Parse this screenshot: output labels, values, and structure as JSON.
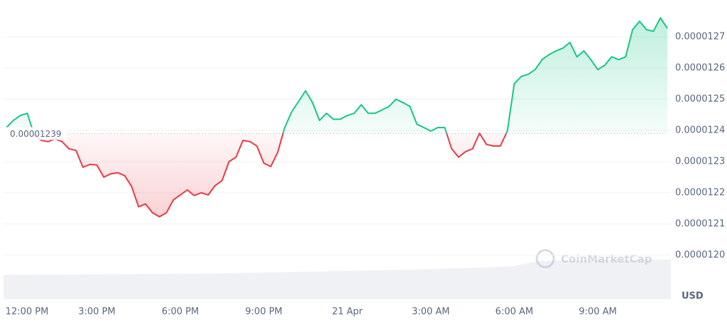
{
  "chart_data": {
    "type": "line",
    "categories": [
      null,
      "12:00 PM",
      null,
      null,
      null,
      null,
      null,
      null,
      null,
      null,
      null,
      null,
      null,
      "3:00 PM",
      null,
      null,
      null,
      null,
      null,
      null,
      null,
      null,
      null,
      null,
      null,
      "6:00 PM",
      null,
      null,
      null,
      null,
      null,
      null,
      null,
      null,
      null,
      null,
      null,
      "9:00 PM",
      null,
      null,
      null,
      null,
      null,
      null,
      null,
      null,
      null,
      null,
      null,
      "21 Apr",
      null,
      null,
      null,
      null,
      null,
      null,
      null,
      null,
      null,
      null,
      null,
      "3:00 AM",
      null,
      null,
      null,
      null,
      null,
      null,
      null,
      null,
      null,
      null,
      null,
      "6:00 AM",
      null,
      null,
      null,
      null,
      null,
      null,
      null,
      null,
      null,
      null,
      null,
      "9:00 AM",
      null,
      null,
      null,
      null,
      null,
      null,
      null,
      null,
      null,
      null
    ],
    "series": [
      {
        "values": [
          1.2409e-05,
          1.2432e-05,
          1.2448e-05,
          1.2455e-05,
          1.2386e-05,
          1.2368e-05,
          1.2364e-05,
          1.2373e-05,
          1.2364e-05,
          1.2341e-05,
          1.2336e-05,
          1.2282e-05,
          1.2291e-05,
          1.2289e-05,
          1.225e-05,
          1.2261e-05,
          1.2264e-05,
          1.2255e-05,
          1.222e-05,
          1.2155e-05,
          1.2164e-05,
          1.2136e-05,
          1.2123e-05,
          1.2136e-05,
          1.2177e-05,
          1.2193e-05,
          1.2209e-05,
          1.2191e-05,
          1.22e-05,
          1.2193e-05,
          1.2223e-05,
          1.2239e-05,
          1.23e-05,
          1.2314e-05,
          1.2368e-05,
          1.2364e-05,
          1.235e-05,
          1.2295e-05,
          1.2284e-05,
          1.233e-05,
          1.2409e-05,
          1.2459e-05,
          1.2493e-05,
          1.2527e-05,
          1.2489e-05,
          1.2432e-05,
          1.2455e-05,
          1.2436e-05,
          1.2436e-05,
          1.2448e-05,
          1.2455e-05,
          1.2482e-05,
          1.2455e-05,
          1.2455e-05,
          1.2466e-05,
          1.2477e-05,
          1.25e-05,
          1.2489e-05,
          1.2477e-05,
          1.242e-05,
          1.2409e-05,
          1.2398e-05,
          1.2409e-05,
          1.2409e-05,
          1.2341e-05,
          1.2314e-05,
          1.2332e-05,
          1.2341e-05,
          1.2391e-05,
          1.2355e-05,
          1.235e-05,
          1.235e-05,
          1.2398e-05,
          1.255e-05,
          1.2573e-05,
          1.258e-05,
          1.2595e-05,
          1.2627e-05,
          1.2643e-05,
          1.2655e-05,
          1.2664e-05,
          1.2682e-05,
          1.2636e-05,
          1.2655e-05,
          1.2627e-05,
          1.2595e-05,
          1.2609e-05,
          1.2636e-05,
          1.2627e-05,
          1.2636e-05,
          1.2723e-05,
          1.275e-05,
          1.2723e-05,
          1.2718e-05,
          1.2761e-05,
          1.2727e-05
        ]
      }
    ],
    "baseline": 1.239e-05,
    "up_color": "#16c784",
    "down_color": "#ea3943",
    "ylim": [
      1.195e-05,
      1.28e-05
    ],
    "yticks": [
      {
        "value": 1.2e-05,
        "label": "0.0000120"
      },
      1.21e-05,
      1.22e-05,
      1.23e-05,
      1.24e-05,
      1.25e-05,
      1.26e-05,
      1.27e-05
    ],
    "grid": true,
    "currency": "USD",
    "watermark": "CoinMarketCap"
  }
}
